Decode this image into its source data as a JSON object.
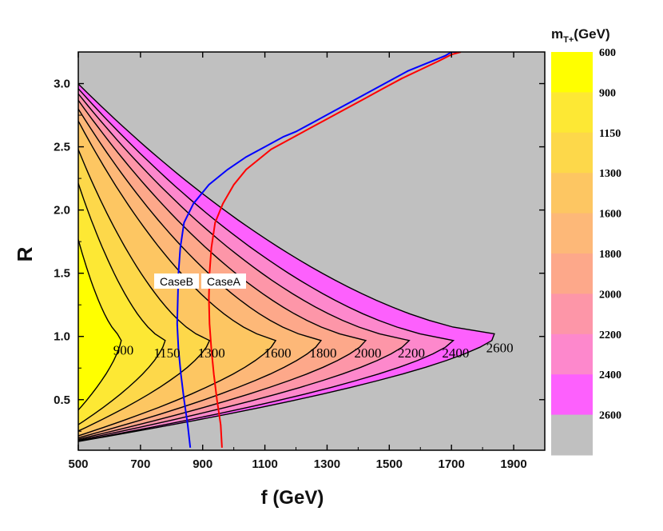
{
  "chart_data": {
    "type": "contour",
    "xlabel": "f (GeV)",
    "ylabel": "R",
    "xlim": [
      500,
      2000
    ],
    "ylim": [
      0.1,
      3.25
    ],
    "x_ticks": [
      "500",
      "700",
      "900",
      "1100",
      "1300",
      "1500",
      "1700",
      "1900"
    ],
    "y_ticks": [
      "0.5",
      "1.0",
      "1.5",
      "2.0",
      "2.5",
      "3.0"
    ],
    "colorbar": {
      "title": "m_T+(GeV)",
      "title_main": "m",
      "title_sub": "T+",
      "title_unit": "(GeV)",
      "labels": [
        "600",
        "900",
        "1150",
        "1300",
        "1600",
        "1800",
        "2000",
        "2200",
        "2400",
        "2600"
      ],
      "colors": [
        "#ffff00",
        "#fde834",
        "#fdd84a",
        "#fdc662",
        "#fdb878",
        "#fda88a",
        "#fd96a8",
        "#fd88cc",
        "#fd60fd",
        "#c0c0c0"
      ]
    },
    "contour_levels": [
      {
        "level": 900,
        "label": "900",
        "tip_x": 640,
        "tip_y": 1.0,
        "fill": "#fde834"
      },
      {
        "level": 1150,
        "label": "1150",
        "tip_x": 780,
        "tip_y": 0.98,
        "fill": "#fdd84a"
      },
      {
        "level": 1300,
        "label": "1300",
        "tip_x": 923,
        "tip_y": 0.98,
        "fill": "#fdc662"
      },
      {
        "level": 1600,
        "label": "1600",
        "tip_x": 1136,
        "tip_y": 0.98,
        "fill": "#fdb878"
      },
      {
        "level": 1800,
        "label": "1800",
        "tip_x": 1282,
        "tip_y": 0.98,
        "fill": "#fda88a"
      },
      {
        "level": 2000,
        "label": "2000",
        "tip_x": 1426,
        "tip_y": 0.98,
        "fill": "#fd96a8"
      },
      {
        "level": 2200,
        "label": "2200",
        "tip_x": 1566,
        "tip_y": 0.98,
        "fill": "#fd88cc"
      },
      {
        "level": 2400,
        "label": "2400",
        "tip_x": 1708,
        "tip_y": 0.98,
        "fill": "#fd60fd"
      },
      {
        "level": 2600,
        "label": "2600",
        "tip_x": 1850,
        "tip_y": 1.02,
        "fill": "#c0c0c0"
      }
    ],
    "series": [
      {
        "name": "CaseB",
        "color": "#0000ff",
        "x": [
          860,
          852,
          840,
          830,
          822,
          818,
          820,
          822,
          828,
          840,
          870,
          920,
          980,
          1040,
          1100,
          1160,
          1200,
          1260,
          1320,
          1380,
          1440,
          1500,
          1560,
          1620,
          1680,
          1700,
          1720
        ],
        "y": [
          0.12,
          0.3,
          0.5,
          0.7,
          0.9,
          1.1,
          1.3,
          1.5,
          1.7,
          1.9,
          2.05,
          2.2,
          2.32,
          2.42,
          2.5,
          2.58,
          2.62,
          2.7,
          2.78,
          2.86,
          2.94,
          3.02,
          3.1,
          3.16,
          3.22,
          3.25,
          3.25
        ]
      },
      {
        "name": "CaseA",
        "color": "#ff0000",
        "x": [
          962,
          958,
          946,
          936,
          928,
          922,
          920,
          922,
          928,
          940,
          965,
          1000,
          1040,
          1080,
          1120,
          1180,
          1240,
          1300,
          1360,
          1420,
          1480,
          1540,
          1600,
          1660,
          1700,
          1730
        ],
        "y": [
          0.12,
          0.3,
          0.5,
          0.7,
          0.9,
          1.1,
          1.3,
          1.5,
          1.7,
          1.9,
          2.05,
          2.2,
          2.32,
          2.4,
          2.48,
          2.56,
          2.64,
          2.72,
          2.8,
          2.88,
          2.96,
          3.04,
          3.11,
          3.18,
          3.23,
          3.25
        ]
      }
    ],
    "annotations": [
      "CaseB",
      "CaseA"
    ]
  }
}
